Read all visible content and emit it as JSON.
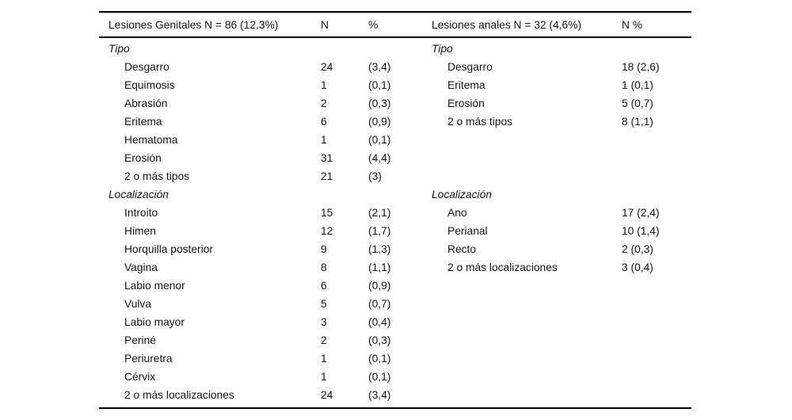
{
  "table": {
    "headers": {
      "left_group": "Lesiones Genitales N = 86 (12,3%)",
      "left_n": "N",
      "left_pct": "%",
      "right_group": "Lesiones anales N = 32 (4,6%)",
      "right_npct": "N %"
    },
    "rows": [
      {
        "left": "Tipo",
        "left_kind": "section",
        "n": "",
        "pct": "",
        "right": "Tipo",
        "right_kind": "section",
        "npct": ""
      },
      {
        "left": "Desgarro",
        "left_kind": "item",
        "n": "24",
        "pct": "(3,4)",
        "right": "Desgarro",
        "right_kind": "item",
        "npct": "18 (2,6)"
      },
      {
        "left": "Equimosis",
        "left_kind": "item",
        "n": "1",
        "pct": "(0,1)",
        "right": "Eritema",
        "right_kind": "item",
        "npct": "1 (0,1)"
      },
      {
        "left": "Abrasión",
        "left_kind": "item",
        "n": "2",
        "pct": "(0,3)",
        "right": "Erosión",
        "right_kind": "item",
        "npct": "5 (0,7)"
      },
      {
        "left": "Eritema",
        "left_kind": "item",
        "n": "6",
        "pct": "(0,9)",
        "right": "2 o más tipos",
        "right_kind": "item",
        "npct": "8 (1,1)"
      },
      {
        "left": "Hematoma",
        "left_kind": "item",
        "n": "1",
        "pct": "(0,1)",
        "right": "",
        "right_kind": "",
        "npct": ""
      },
      {
        "left": "Erosión",
        "left_kind": "item",
        "n": "31",
        "pct": "(4,4)",
        "right": "",
        "right_kind": "",
        "npct": ""
      },
      {
        "left": "2 o más tipos",
        "left_kind": "item",
        "n": "21",
        "pct": "(3)",
        "right": "",
        "right_kind": "",
        "npct": ""
      },
      {
        "left": "Localización",
        "left_kind": "section",
        "n": "",
        "pct": "",
        "right": "Localización",
        "right_kind": "section",
        "npct": ""
      },
      {
        "left": "Introito",
        "left_kind": "item",
        "n": "15",
        "pct": "(2,1)",
        "right": "Ano",
        "right_kind": "item",
        "npct": "17 (2,4)"
      },
      {
        "left": "Himen",
        "left_kind": "item",
        "n": "12",
        "pct": "(1,7)",
        "right": "Perianal",
        "right_kind": "item",
        "npct": "10 (1,4)"
      },
      {
        "left": "Horquilla posterior",
        "left_kind": "item",
        "n": "9",
        "pct": "(1,3)",
        "right": "Recto",
        "right_kind": "item",
        "npct": "2 (0,3)"
      },
      {
        "left": "Vagina",
        "left_kind": "item",
        "n": "8",
        "pct": "(1,1)",
        "right": "2 o más localizaciones",
        "right_kind": "item",
        "npct": "3 (0,4)"
      },
      {
        "left": "Labio menor",
        "left_kind": "item",
        "n": "6",
        "pct": "(0,9)",
        "right": "",
        "right_kind": "",
        "npct": ""
      },
      {
        "left": "Vulva",
        "left_kind": "item",
        "n": "5",
        "pct": "(0,7)",
        "right": "",
        "right_kind": "",
        "npct": ""
      },
      {
        "left": "Labio mayor",
        "left_kind": "item",
        "n": "3",
        "pct": "(0,4)",
        "right": "",
        "right_kind": "",
        "npct": ""
      },
      {
        "left": "Periné",
        "left_kind": "item",
        "n": "2",
        "pct": "(0,3)",
        "right": "",
        "right_kind": "",
        "npct": ""
      },
      {
        "left": "Periuretra",
        "left_kind": "item",
        "n": "1",
        "pct": "(0,1)",
        "right": "",
        "right_kind": "",
        "npct": ""
      },
      {
        "left": "Cérvix",
        "left_kind": "item",
        "n": "1",
        "pct": "(0,1)",
        "right": "",
        "right_kind": "",
        "npct": ""
      },
      {
        "left": "2 o más localizaciones",
        "left_kind": "item",
        "n": "24",
        "pct": "(3,4)",
        "right": "",
        "right_kind": "",
        "npct": ""
      }
    ]
  }
}
